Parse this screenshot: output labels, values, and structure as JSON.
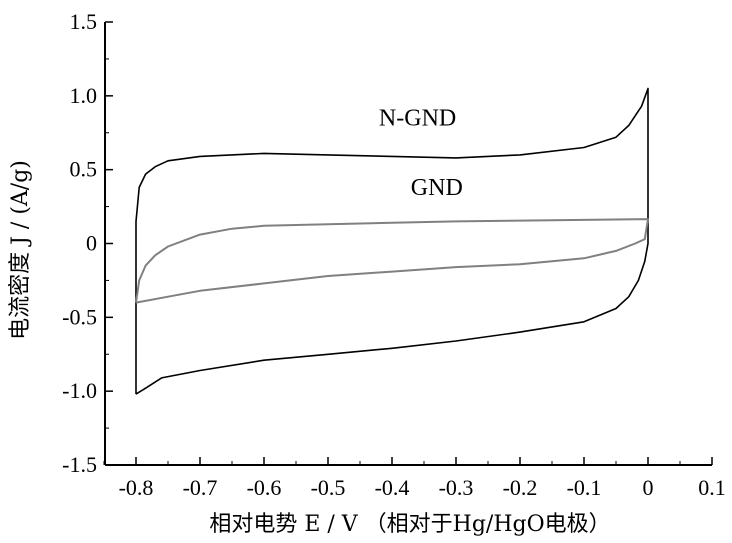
{
  "chart_data": {
    "type": "line",
    "title": "",
    "xlabel": "相对电势 E / V （相对于Hg/HgO电极）",
    "ylabel": "电流密度 J / (A/g)",
    "xlim": [
      -0.85,
      0.1
    ],
    "ylim": [
      -1.5,
      1.5
    ],
    "x_ticks": [
      -0.8,
      -0.7,
      -0.6,
      -0.5,
      -0.4,
      -0.3,
      -0.2,
      -0.1,
      0,
      0.1
    ],
    "x_tick_labels": [
      "-0.8",
      "-0.7",
      "-0.6",
      "-0.5",
      "-0.4",
      "-0.3",
      "-0.2",
      "-0.1",
      "0",
      "0.1"
    ],
    "y_ticks": [
      -1.5,
      -1.0,
      -0.5,
      0,
      0.5,
      1.0,
      1.5
    ],
    "y_tick_labels": [
      "-1.5",
      "-1.0",
      "-0.5",
      "0",
      "0.5",
      "1.0",
      "1.5"
    ],
    "grid": false,
    "legend": "none",
    "series": [
      {
        "name": "N-GND",
        "color": "#000000",
        "points": [
          [
            -0.8,
            -1.02
          ],
          [
            -0.8,
            -0.4
          ],
          [
            -0.8,
            0.15
          ],
          [
            -0.795,
            0.38
          ],
          [
            -0.785,
            0.47
          ],
          [
            -0.77,
            0.52
          ],
          [
            -0.75,
            0.56
          ],
          [
            -0.7,
            0.59
          ],
          [
            -0.6,
            0.61
          ],
          [
            -0.5,
            0.6
          ],
          [
            -0.4,
            0.59
          ],
          [
            -0.3,
            0.58
          ],
          [
            -0.2,
            0.6
          ],
          [
            -0.1,
            0.65
          ],
          [
            -0.05,
            0.72
          ],
          [
            -0.03,
            0.8
          ],
          [
            -0.01,
            0.93
          ],
          [
            0.0,
            1.05
          ],
          [
            0.0,
            0.5
          ],
          [
            0.0,
            0.0
          ],
          [
            -0.005,
            -0.12
          ],
          [
            -0.015,
            -0.25
          ],
          [
            -0.03,
            -0.36
          ],
          [
            -0.05,
            -0.44
          ],
          [
            -0.1,
            -0.53
          ],
          [
            -0.2,
            -0.6
          ],
          [
            -0.3,
            -0.66
          ],
          [
            -0.4,
            -0.71
          ],
          [
            -0.5,
            -0.75
          ],
          [
            -0.6,
            -0.79
          ],
          [
            -0.7,
            -0.86
          ],
          [
            -0.76,
            -0.91
          ],
          [
            -0.785,
            -0.98
          ],
          [
            -0.8,
            -1.02
          ]
        ]
      },
      {
        "name": "GND",
        "color": "#808080",
        "points": [
          [
            -0.8,
            -0.4
          ],
          [
            -0.795,
            -0.25
          ],
          [
            -0.785,
            -0.15
          ],
          [
            -0.77,
            -0.08
          ],
          [
            -0.75,
            -0.02
          ],
          [
            -0.7,
            0.06
          ],
          [
            -0.65,
            0.1
          ],
          [
            -0.6,
            0.12
          ],
          [
            -0.5,
            0.13
          ],
          [
            -0.4,
            0.14
          ],
          [
            -0.3,
            0.15
          ],
          [
            -0.2,
            0.155
          ],
          [
            -0.1,
            0.16
          ],
          [
            0.0,
            0.165
          ],
          [
            -0.005,
            0.03
          ],
          [
            -0.02,
            0.0
          ],
          [
            -0.05,
            -0.05
          ],
          [
            -0.1,
            -0.1
          ],
          [
            -0.2,
            -0.14
          ],
          [
            -0.3,
            -0.16
          ],
          [
            -0.4,
            -0.19
          ],
          [
            -0.5,
            -0.22
          ],
          [
            -0.6,
            -0.27
          ],
          [
            -0.7,
            -0.32
          ],
          [
            -0.75,
            -0.36
          ],
          [
            -0.8,
            -0.4
          ]
        ]
      }
    ],
    "annotations": [
      {
        "text": "N-GND",
        "x": -0.36,
        "y": 0.8
      },
      {
        "text": "GND",
        "x": -0.33,
        "y": 0.33
      }
    ]
  }
}
